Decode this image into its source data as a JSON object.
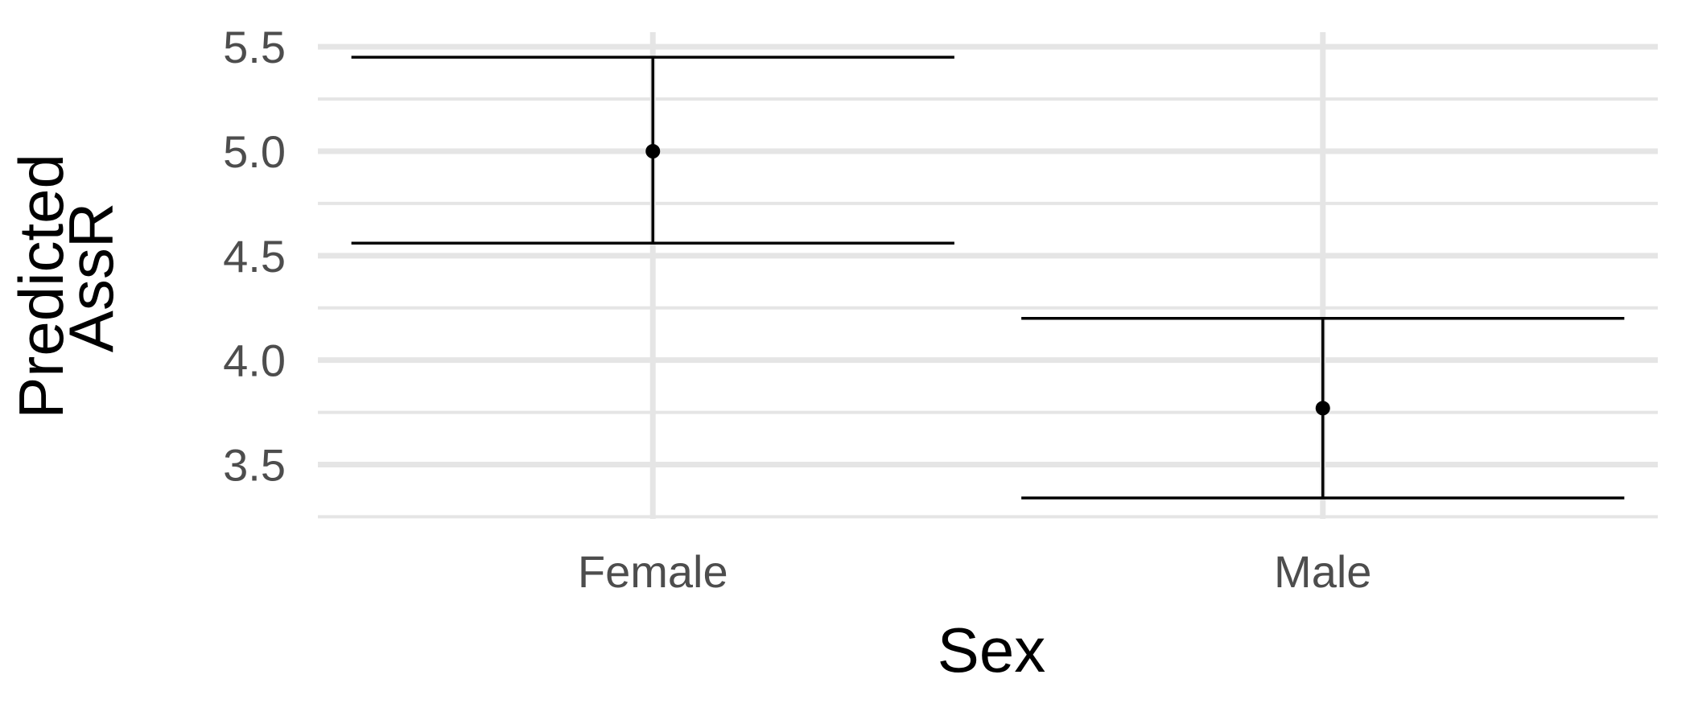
{
  "chart_data": {
    "type": "errorbar",
    "categories": [
      "Female",
      "Male"
    ],
    "series": [
      {
        "estimates": [
          5.0,
          3.77
        ],
        "lower": [
          4.56,
          3.34
        ],
        "upper": [
          5.45,
          4.2
        ]
      }
    ],
    "xlabel": "Sex",
    "ylabel_lines": [
      "Predicted",
      "AssR"
    ],
    "ylim": [
      3.24,
      5.57
    ],
    "yticks": [
      3.5,
      4.0,
      4.5,
      5.0,
      5.5
    ],
    "ytick_labels": [
      "3.5",
      "4.0",
      "4.5",
      "5.0",
      "5.5"
    ],
    "minor_ticks": [
      3.25,
      3.75,
      4.25,
      4.75,
      5.25
    ],
    "grid": true,
    "legend": "none",
    "colors": {
      "mark": "#000000",
      "grid": "#e5e5e5",
      "tick_text": "#4d4d4d"
    }
  }
}
